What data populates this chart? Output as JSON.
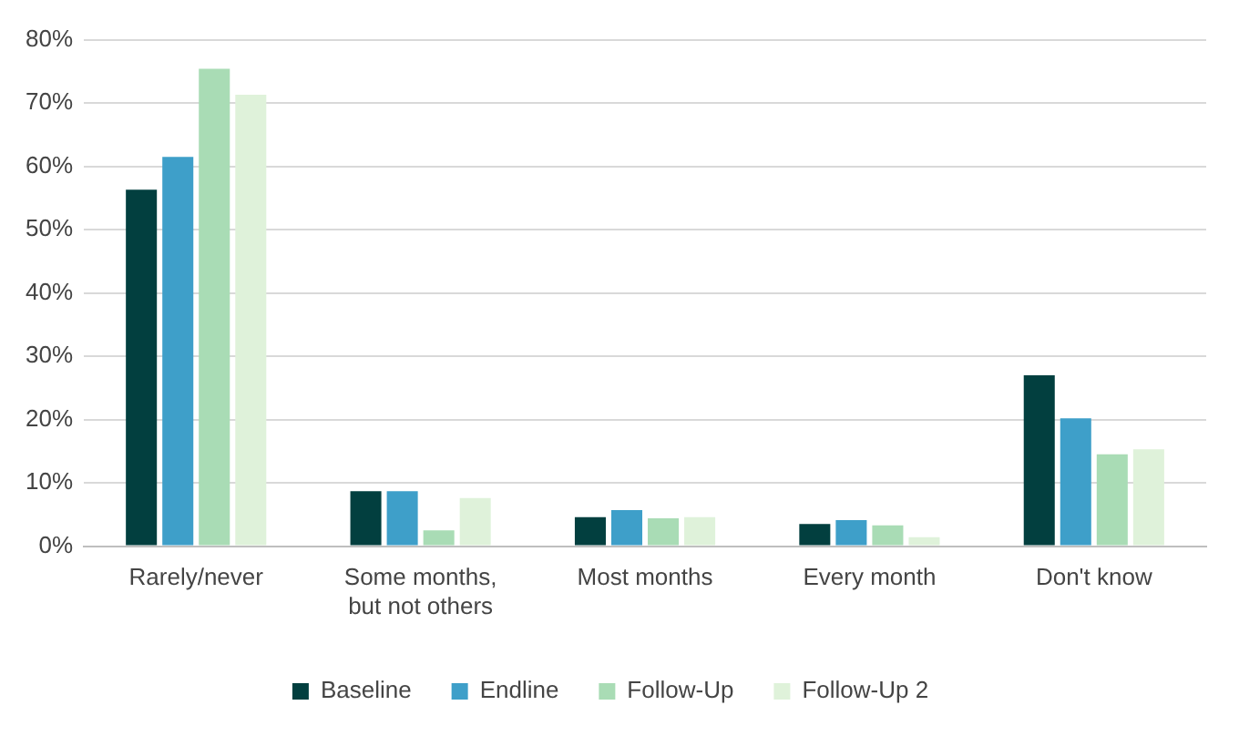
{
  "chart_data": {
    "type": "bar",
    "categories": [
      "Rarely/never",
      "Some months, but not others",
      "Most months",
      "Every month",
      "Don't know"
    ],
    "series": [
      {
        "name": "Baseline",
        "color": "#023f3f",
        "values": [
          56.3,
          8.7,
          4.6,
          3.5,
          27
        ]
      },
      {
        "name": "Endline",
        "color": "#3e9fc9",
        "values": [
          61.5,
          8.7,
          5.7,
          4.1,
          20.2
        ]
      },
      {
        "name": "Follow-Up",
        "color": "#a9dcb5",
        "values": [
          75.4,
          2.5,
          4.4,
          3.3,
          14.5
        ]
      },
      {
        "name": "Follow-Up 2",
        "color": "#dff2da",
        "values": [
          71.3,
          7.6,
          4.6,
          1.4,
          15.3
        ]
      }
    ],
    "ylim": [
      0,
      80
    ],
    "yticks": [
      {
        "value": 0,
        "label": "0%"
      },
      {
        "value": 10,
        "label": "10%"
      },
      {
        "value": 20,
        "label": "20%"
      },
      {
        "value": 30,
        "label": "30%"
      },
      {
        "value": 40,
        "label": "40%"
      },
      {
        "value": 50,
        "label": "50%"
      },
      {
        "value": 60,
        "label": "60%"
      },
      {
        "value": 70,
        "label": "70%"
      },
      {
        "value": 80,
        "label": "80%"
      }
    ],
    "grid": "y",
    "legend": "bottom"
  }
}
